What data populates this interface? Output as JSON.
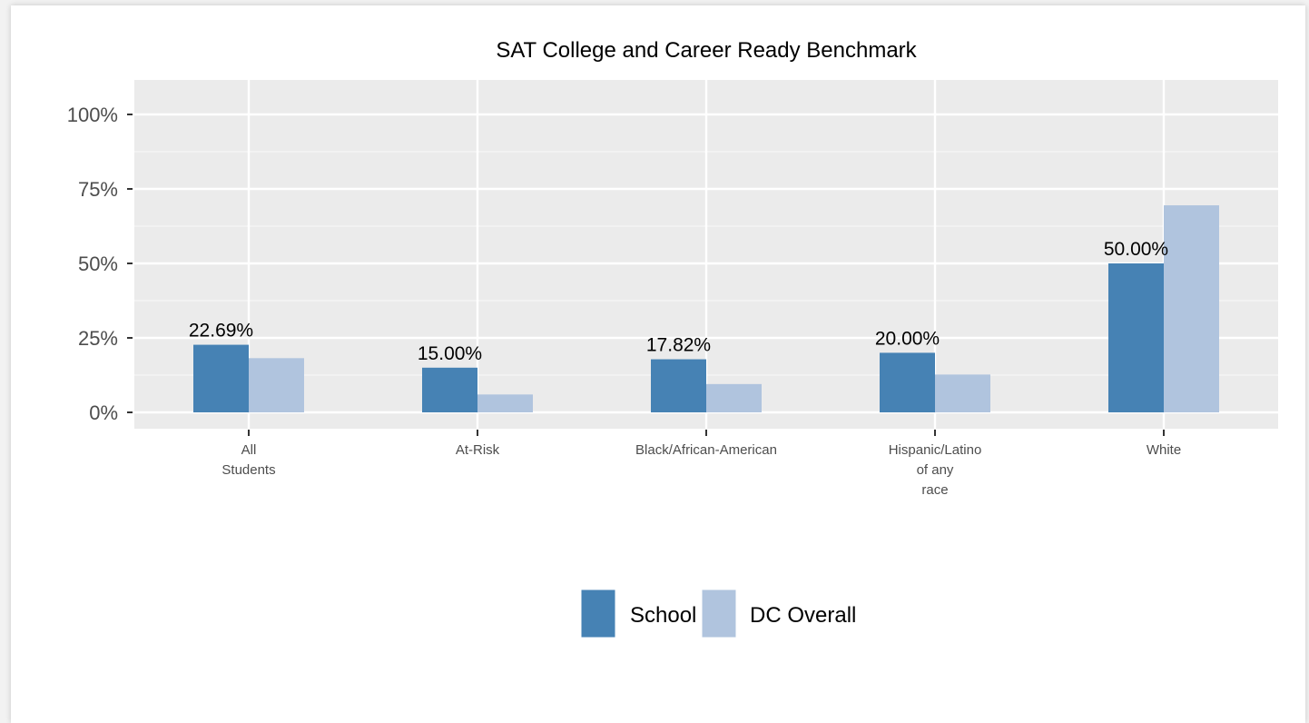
{
  "chart_data": {
    "type": "bar",
    "title": "SAT College and Career Ready Benchmark",
    "xlabel": "",
    "ylabel": "",
    "ylim": [
      0,
      105
    ],
    "yticks": [
      0,
      25,
      50,
      75,
      100
    ],
    "ytick_labels": [
      "0%",
      "25%",
      "50%",
      "75%",
      "100%"
    ],
    "categories": [
      [
        "All",
        "Students"
      ],
      [
        "At-Risk"
      ],
      [
        "Black/African-American"
      ],
      [
        "Hispanic/Latino",
        "of any",
        "race"
      ],
      [
        "White"
      ]
    ],
    "series": [
      {
        "name": "School",
        "color": "#4682b4",
        "values": [
          22.69,
          15.0,
          17.82,
          20.0,
          50.0
        ]
      },
      {
        "name": "DC Overall",
        "color": "#b0c4de",
        "values": [
          18.2,
          6.0,
          9.5,
          12.7,
          69.5
        ]
      }
    ],
    "data_labels": [
      "22.69%",
      "15.00%",
      "17.82%",
      "20.00%",
      "50.00%"
    ],
    "grid": true,
    "panel_background": "#ebebeb",
    "legend_position": "bottom"
  }
}
